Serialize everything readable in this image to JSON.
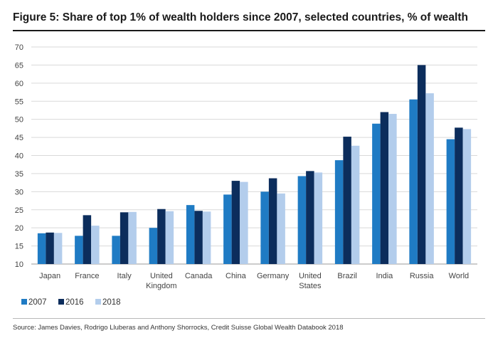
{
  "title": "Figure 5: Share of top 1% of wealth holders since 2007, selected countries, % of wealth",
  "source": "Source: James Davies, Rodrigo Lluberas and Anthony Shorrocks, Credit Suisse Global Wealth Databook 2018",
  "chart_data": {
    "type": "bar",
    "title": "Figure 5: Share of top 1% of wealth holders since 2007, selected countries, % of wealth",
    "categories": [
      [
        "Japan"
      ],
      [
        "France"
      ],
      [
        "Italy"
      ],
      [
        "United",
        "Kingdom"
      ],
      [
        "Canada"
      ],
      [
        "China"
      ],
      [
        "Germany"
      ],
      [
        "United",
        "States"
      ],
      [
        "Brazil"
      ],
      [
        "India"
      ],
      [
        "Russia"
      ],
      [
        "World"
      ]
    ],
    "series": [
      {
        "name": "2007",
        "color": "#1f7bc4",
        "values": [
          18.5,
          17.8,
          17.8,
          20.0,
          26.3,
          29.2,
          30.0,
          34.3,
          38.7,
          48.8,
          55.5,
          44.5
        ]
      },
      {
        "name": "2016",
        "color": "#0c2d5c",
        "values": [
          18.7,
          23.5,
          24.3,
          25.2,
          24.7,
          33.0,
          33.7,
          35.7,
          45.2,
          52.0,
          65.0,
          47.7
        ]
      },
      {
        "name": "2018",
        "color": "#b3cdec",
        "values": [
          18.6,
          20.6,
          24.4,
          24.6,
          24.5,
          32.7,
          29.5,
          35.3,
          42.7,
          51.5,
          57.2,
          47.3
        ]
      }
    ],
    "yticks": [
      10,
      15,
      20,
      25,
      30,
      35,
      40,
      45,
      50,
      55,
      60,
      65,
      70
    ],
    "ylim": [
      10,
      70
    ],
    "xlabel": "",
    "ylabel": "",
    "grid": true,
    "legend_position": "bottom-left"
  }
}
